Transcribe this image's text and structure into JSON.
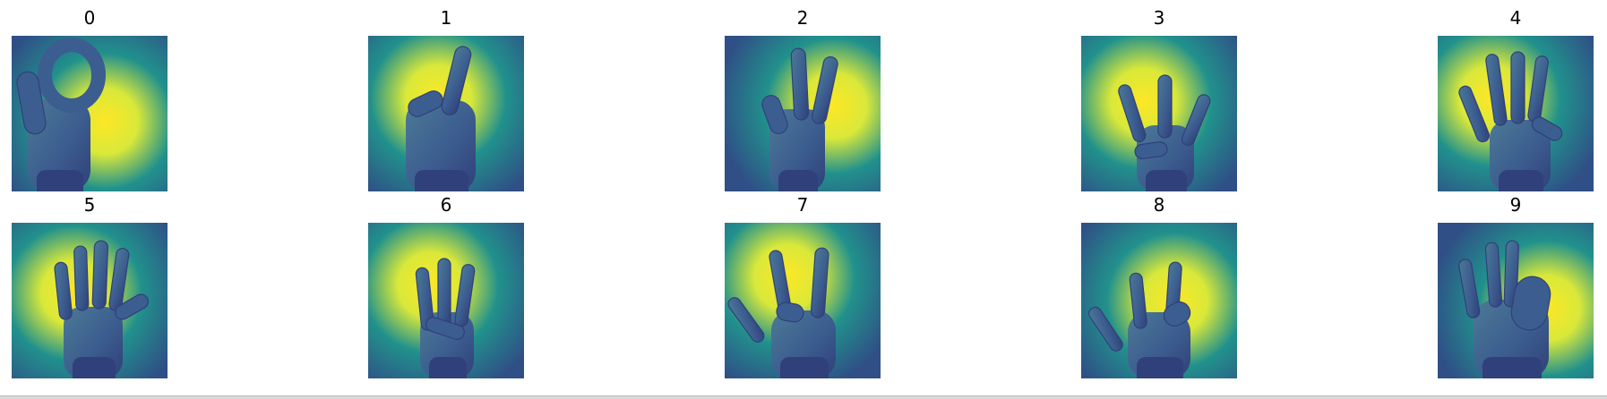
{
  "figure": {
    "colors": {
      "bg_dark": "#2f4f86",
      "bg_mid": "#21918c",
      "bg_bright": "#d9e83a",
      "bg_peak": "#fde725",
      "hand_dark": "#30407a",
      "hand_mid": "#3c5d8f",
      "hand_light": "#4c7a96"
    },
    "panels": [
      {
        "title": "0",
        "icon": "hand-sign-zero-icon"
      },
      {
        "title": "1",
        "icon": "hand-sign-one-icon"
      },
      {
        "title": "2",
        "icon": "hand-sign-two-icon"
      },
      {
        "title": "3",
        "icon": "hand-sign-three-icon"
      },
      {
        "title": "4",
        "icon": "hand-sign-four-icon"
      },
      {
        "title": "5",
        "icon": "hand-sign-five-icon"
      },
      {
        "title": "6",
        "icon": "hand-sign-six-icon"
      },
      {
        "title": "7",
        "icon": "hand-sign-seven-icon"
      },
      {
        "title": "8",
        "icon": "hand-sign-eight-icon"
      },
      {
        "title": "9",
        "icon": "hand-sign-nine-icon"
      }
    ]
  }
}
